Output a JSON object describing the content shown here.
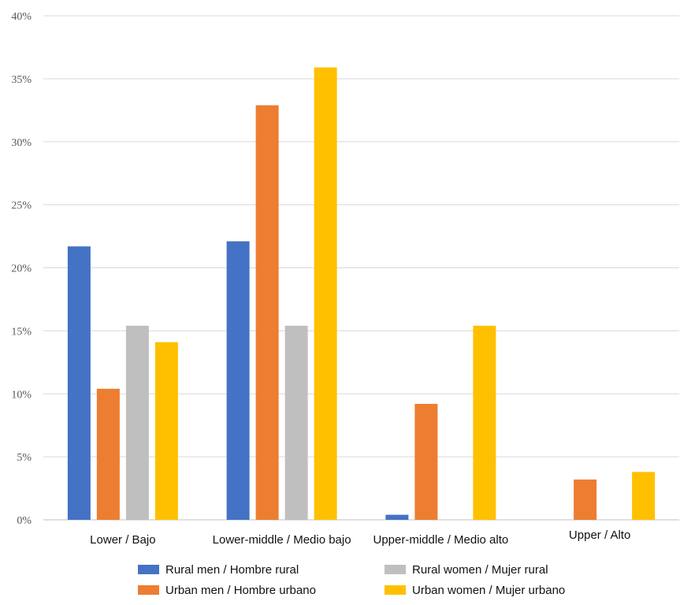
{
  "chart_data": {
    "type": "bar",
    "categories": [
      "Lower / Bajo",
      "Lower-middle / Medio bajo",
      "Upper-middle / Medio alto",
      "Upper / Alto"
    ],
    "series": [
      {
        "name": "Rural men / Hombre rural",
        "color": "#4472C4",
        "values": [
          21.7,
          22.1,
          0.4,
          0
        ]
      },
      {
        "name": "Urban men / Hombre urbano",
        "color": "#ED7D31",
        "values": [
          10.4,
          32.9,
          9.2,
          3.2
        ]
      },
      {
        "name": "Rural women / Mujer rural",
        "color": "#BFBFBF",
        "values": [
          15.4,
          15.4,
          0,
          0
        ]
      },
      {
        "name": "Urban women / Mujer urbano",
        "color": "#FFC000",
        "values": [
          14.1,
          35.9,
          15.4,
          3.8
        ]
      }
    ],
    "ylim": [
      0,
      40
    ],
    "yticks": [
      "0%",
      "5%",
      "10%",
      "15%",
      "20%",
      "25%",
      "30%",
      "35%",
      "40%"
    ],
    "grid": true,
    "legend_position": "bottom"
  }
}
